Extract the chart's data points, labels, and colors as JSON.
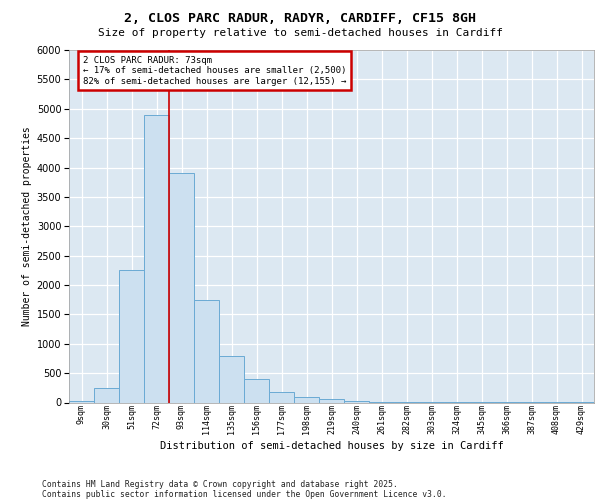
{
  "title_line1": "2, CLOS PARC RADUR, RADYR, CARDIFF, CF15 8GH",
  "title_line2": "Size of property relative to semi-detached houses in Cardiff",
  "xlabel": "Distribution of semi-detached houses by size in Cardiff",
  "ylabel": "Number of semi-detached properties",
  "bin_labels": [
    "9sqm",
    "30sqm",
    "51sqm",
    "72sqm",
    "93sqm",
    "114sqm",
    "135sqm",
    "156sqm",
    "177sqm",
    "198sqm",
    "219sqm",
    "240sqm",
    "261sqm",
    "282sqm",
    "303sqm",
    "324sqm",
    "345sqm",
    "366sqm",
    "387sqm",
    "408sqm",
    "429sqm"
  ],
  "bin_values": [
    30,
    250,
    2250,
    4900,
    3900,
    1750,
    800,
    400,
    180,
    90,
    55,
    25,
    15,
    10,
    5,
    3,
    2,
    2,
    2,
    1,
    1
  ],
  "bar_color": "#cce0f0",
  "bar_edge_color": "#6aaad4",
  "property_line_x": 3.5,
  "annotation_text": "2 CLOS PARC RADUR: 73sqm\n← 17% of semi-detached houses are smaller (2,500)\n82% of semi-detached houses are larger (12,155) →",
  "red_line_color": "#cc0000",
  "ylim_max": 6000,
  "ytick_step": 500,
  "background_color": "#dce8f2",
  "footer_line1": "Contains HM Land Registry data © Crown copyright and database right 2025.",
  "footer_line2": "Contains public sector information licensed under the Open Government Licence v3.0."
}
